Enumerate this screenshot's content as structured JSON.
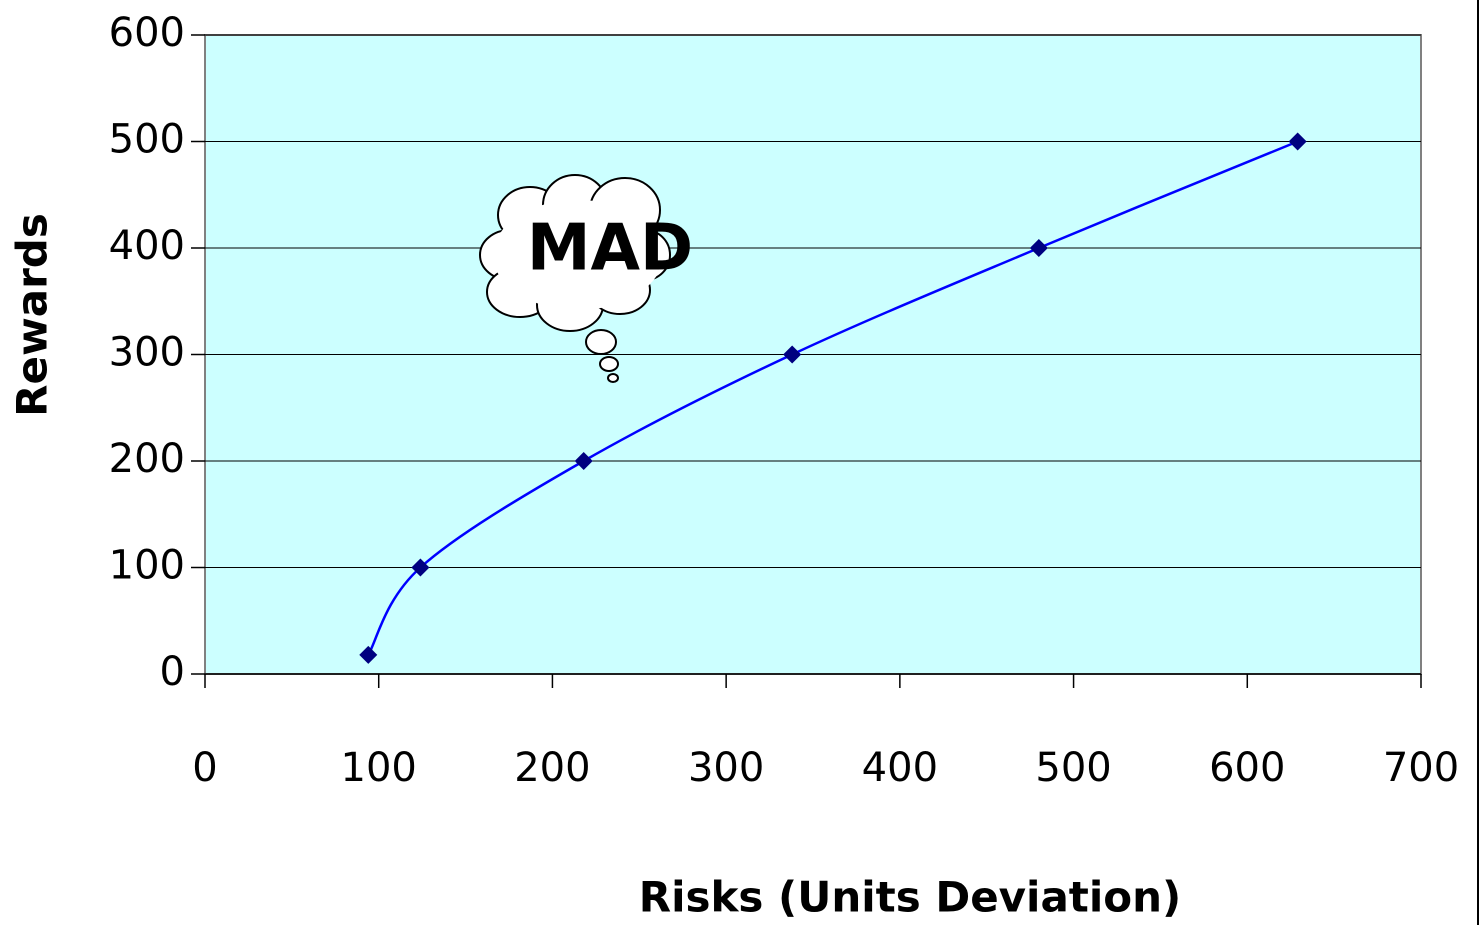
{
  "chart_data": {
    "type": "scatter",
    "x_label": "Risks (Units Deviation)",
    "y_label": "Rewards",
    "annotation": "MAD",
    "series": [
      {
        "color": "#0000ff",
        "marker_color": "#000080",
        "x": [
          94,
          124,
          218,
          338,
          480,
          629
        ],
        "values": [
          18,
          100,
          200,
          300,
          400,
          500
        ]
      }
    ],
    "xlim": [
      0,
      700
    ],
    "xticks": [
      0,
      100,
      200,
      300,
      400,
      500,
      600,
      700
    ],
    "ylim": [
      0,
      600
    ],
    "yticks": [
      0,
      100,
      200,
      300,
      400,
      500,
      600
    ],
    "grid": true,
    "background": "#ccffff"
  }
}
